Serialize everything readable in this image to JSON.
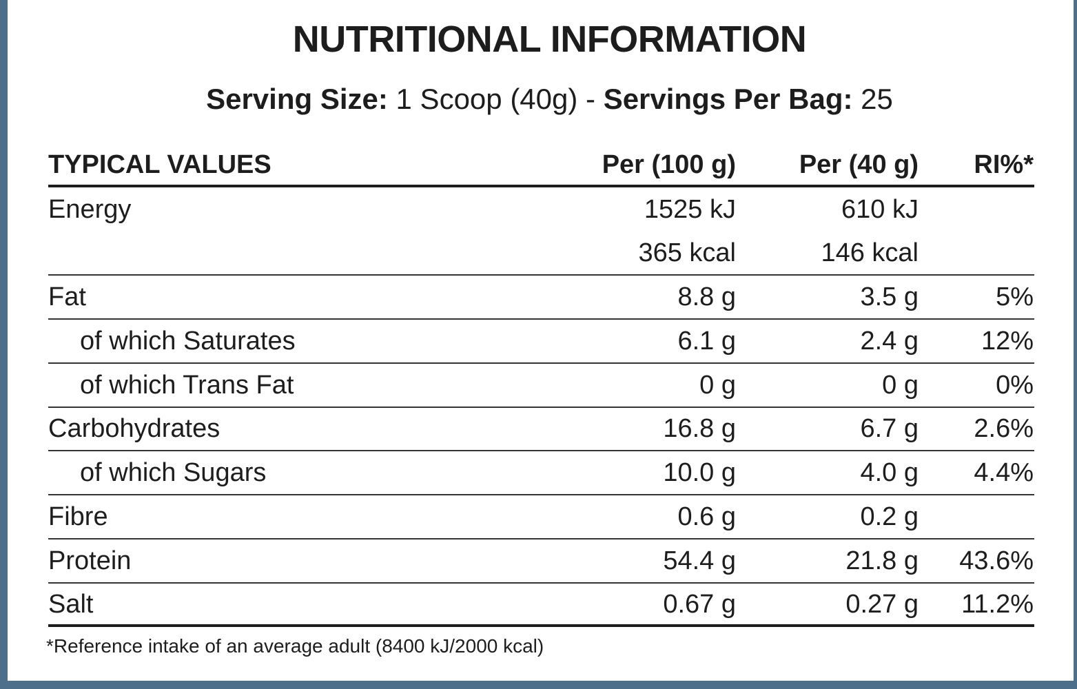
{
  "title": "NUTRITIONAL INFORMATION",
  "serving": {
    "size_label": "Serving Size:",
    "size_value": " 1 Scoop (40g) - ",
    "per_bag_label": "Servings Per Bag:",
    "per_bag_value": " 25"
  },
  "table": {
    "headers": [
      "TYPICAL VALUES",
      "Per (100 g)",
      "Per (40 g)",
      "RI%*"
    ],
    "rows": [
      {
        "name": "Energy",
        "per100": "1525 kJ",
        "per40": "610 kJ",
        "ri": ""
      },
      {
        "name": "",
        "per100": "365 kcal",
        "per40": "146 kcal",
        "ri": ""
      },
      {
        "name": "Fat",
        "per100": "8.8 g",
        "per40": "3.5 g",
        "ri": "5%"
      },
      {
        "name": "of which Saturates",
        "per100": "6.1 g",
        "per40": "2.4 g",
        "ri": "12%"
      },
      {
        "name": "of which Trans Fat",
        "per100": "0 g",
        "per40": "0 g",
        "ri": "0%"
      },
      {
        "name": "Carbohydrates",
        "per100": "16.8 g",
        "per40": "6.7 g",
        "ri": "2.6%"
      },
      {
        "name": "of which Sugars",
        "per100": "10.0 g",
        "per40": "4.0 g",
        "ri": "4.4%"
      },
      {
        "name": "Fibre",
        "per100": "0.6 g",
        "per40": "0.2 g",
        "ri": ""
      },
      {
        "name": "Protein",
        "per100": "54.4 g",
        "per40": "21.8 g",
        "ri": "43.6%"
      },
      {
        "name": "Salt",
        "per100": "0.67 g",
        "per40": "0.27 g",
        "ri": "11.2%"
      }
    ]
  },
  "footnote": "*Reference intake of an average adult (8400 kJ/2000 kcal)",
  "colors": {
    "frame": "#4d6f8c",
    "text": "#1d1d1d"
  }
}
